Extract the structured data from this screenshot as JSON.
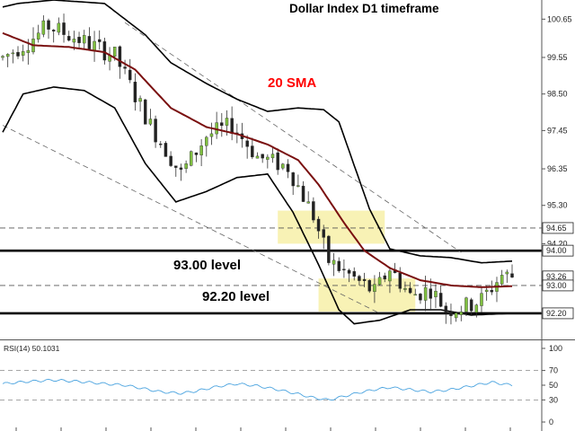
{
  "chart_data": {
    "type": "candlestick",
    "title": "Dollar Index D1 timeframe",
    "sma_label": "20 SMA",
    "level_labels": [
      "93.00 level",
      "92.20 level"
    ],
    "ylim": [
      91.45,
      101.2
    ],
    "y_ticks": [
      "100.65",
      "99.55",
      "98.50",
      "97.45",
      "96.35",
      "95.30",
      "94.20",
      "93.00",
      "92.20"
    ],
    "price_tags": [
      "94.65",
      "94.00",
      "93.26",
      "93.00",
      "92.20"
    ],
    "horizontal_lines": [
      {
        "value": 94.0,
        "style": "solid-thick"
      },
      {
        "value": 92.2,
        "style": "solid-thick"
      },
      {
        "value": 94.65,
        "style": "dashed"
      },
      {
        "value": 93.0,
        "style": "dashed"
      }
    ],
    "zones": [
      {
        "from": 0.54,
        "to": 0.75,
        "low": 94.2,
        "high": 95.15
      },
      {
        "from": 0.62,
        "to": 0.81,
        "low": 92.25,
        "high": 93.2
      }
    ],
    "candles": {
      "count": 101,
      "path": [
        [
          0,
          99.55
        ],
        [
          5,
          100.0
        ],
        [
          9,
          100.45
        ],
        [
          16,
          100.0
        ],
        [
          22,
          99.6
        ],
        [
          29,
          97.6
        ],
        [
          35,
          96.2
        ],
        [
          40,
          97.3
        ],
        [
          45,
          97.6
        ],
        [
          50,
          96.7
        ],
        [
          56,
          96.4
        ],
        [
          61,
          95.0
        ],
        [
          64,
          93.7
        ],
        [
          69,
          93.2
        ],
        [
          73,
          92.8
        ],
        [
          76,
          93.5
        ],
        [
          80,
          92.7
        ],
        [
          84,
          92.9
        ],
        [
          87,
          92.3
        ],
        [
          91,
          92.4
        ],
        [
          94,
          92.6
        ],
        [
          98,
          93.3
        ],
        [
          100,
          93.26
        ]
      ]
    },
    "sma_20": [
      [
        0,
        100.25
      ],
      [
        6,
        99.9
      ],
      [
        13,
        99.85
      ],
      [
        20,
        99.7
      ],
      [
        26,
        99.2
      ],
      [
        33,
        98.1
      ],
      [
        40,
        97.55
      ],
      [
        46,
        97.35
      ],
      [
        52,
        97.05
      ],
      [
        58,
        96.6
      ],
      [
        62,
        95.9
      ],
      [
        67,
        94.8
      ],
      [
        71,
        94.0
      ],
      [
        76,
        93.5
      ],
      [
        82,
        93.15
      ],
      [
        88,
        93.0
      ],
      [
        94,
        92.95
      ],
      [
        100,
        92.98
      ]
    ],
    "bollinger_upper": [
      [
        0,
        101.0
      ],
      [
        3,
        101.1
      ],
      [
        10,
        101.2
      ],
      [
        20,
        101.1
      ],
      [
        28,
        100.2
      ],
      [
        33,
        99.4
      ],
      [
        40,
        98.8
      ],
      [
        46,
        98.35
      ],
      [
        52,
        98.0
      ],
      [
        58,
        98.1
      ],
      [
        63,
        98.05
      ],
      [
        66,
        97.7
      ],
      [
        72,
        95.2
      ],
      [
        76,
        94.05
      ],
      [
        82,
        93.85
      ],
      [
        88,
        93.8
      ],
      [
        94,
        93.65
      ],
      [
        100,
        93.7
      ]
    ],
    "bollinger_lower": [
      [
        0,
        97.4
      ],
      [
        4,
        98.5
      ],
      [
        10,
        98.7
      ],
      [
        16,
        98.6
      ],
      [
        22,
        98.1
      ],
      [
        28,
        96.5
      ],
      [
        34,
        95.4
      ],
      [
        40,
        95.7
      ],
      [
        46,
        96.1
      ],
      [
        52,
        96.2
      ],
      [
        57,
        95.1
      ],
      [
        62,
        93.6
      ],
      [
        66,
        92.3
      ],
      [
        69,
        91.9
      ],
      [
        74,
        92.0
      ],
      [
        80,
        92.3
      ],
      [
        86,
        92.3
      ],
      [
        92,
        92.15
      ],
      [
        100,
        92.2
      ]
    ],
    "trendlines": [
      {
        "from": [
          0,
          97.6
        ],
        "to": [
          74,
          92.2
        ]
      },
      {
        "from": [
          24,
          100.55
        ],
        "to": [
          90,
          93.95
        ]
      }
    ],
    "rsi": {
      "label": "RSI(14) 50.1031",
      "ylim": [
        0,
        100
      ],
      "ticks": [
        "100",
        "70",
        "50",
        "30",
        "0"
      ],
      "levels": [
        70,
        30
      ],
      "values": [
        [
          0,
          52
        ],
        [
          5,
          55
        ],
        [
          10,
          57
        ],
        [
          15,
          55
        ],
        [
          20,
          52
        ],
        [
          24,
          50
        ],
        [
          28,
          45
        ],
        [
          31,
          41
        ],
        [
          35,
          39
        ],
        [
          38,
          42
        ],
        [
          42,
          48
        ],
        [
          46,
          52
        ],
        [
          50,
          49
        ],
        [
          54,
          44
        ],
        [
          58,
          38
        ],
        [
          61,
          33
        ],
        [
          64,
          30
        ],
        [
          67,
          35
        ],
        [
          70,
          40
        ],
        [
          73,
          44
        ],
        [
          76,
          47
        ],
        [
          80,
          44
        ],
        [
          84,
          41
        ],
        [
          88,
          44
        ],
        [
          92,
          49
        ],
        [
          96,
          54
        ],
        [
          100,
          50
        ]
      ]
    },
    "colors": {
      "bull": "#7fbf3f",
      "bear": "#222222",
      "sma": "#7a1010",
      "band": "#000000",
      "level": "#000000",
      "zone": "#f7f0a8",
      "rsi": "#4aa3df"
    },
    "grid": false,
    "legend": "none"
  }
}
